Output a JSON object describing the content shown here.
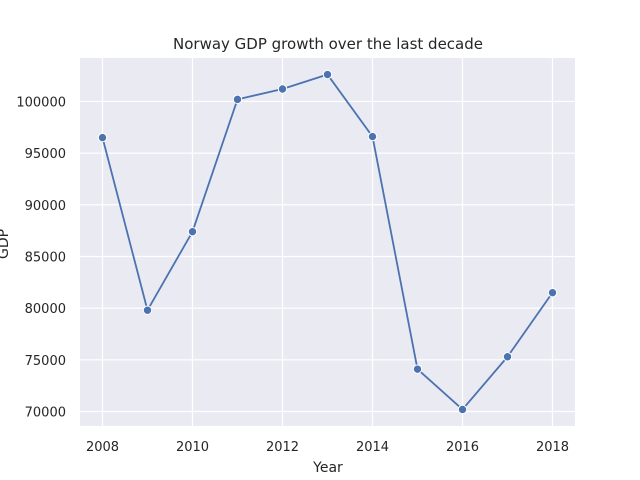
{
  "chart_data": {
    "type": "line",
    "title": "Norway GDP growth over the last decade",
    "xlabel": "Year",
    "ylabel": "GDP",
    "x": [
      2008,
      2009,
      2010,
      2011,
      2012,
      2013,
      2014,
      2015,
      2016,
      2017,
      2018
    ],
    "series": [
      {
        "values": [
          96500,
          79800,
          87400,
          100200,
          101200,
          102600,
          96600,
          74100,
          70200,
          75300,
          81500
        ]
      }
    ],
    "x_ticks": [
      "2008",
      "2010",
      "2012",
      "2014",
      "2016",
      "2018"
    ],
    "y_ticks": [
      "70000",
      "75000",
      "80000",
      "85000",
      "90000",
      "95000",
      "100000"
    ],
    "xlim": [
      2007.5,
      2018.5
    ],
    "ylim": [
      68600,
      104200
    ],
    "grid": true,
    "marker": "circle",
    "color": "#4c72b0",
    "background": "#eaeaf2"
  }
}
